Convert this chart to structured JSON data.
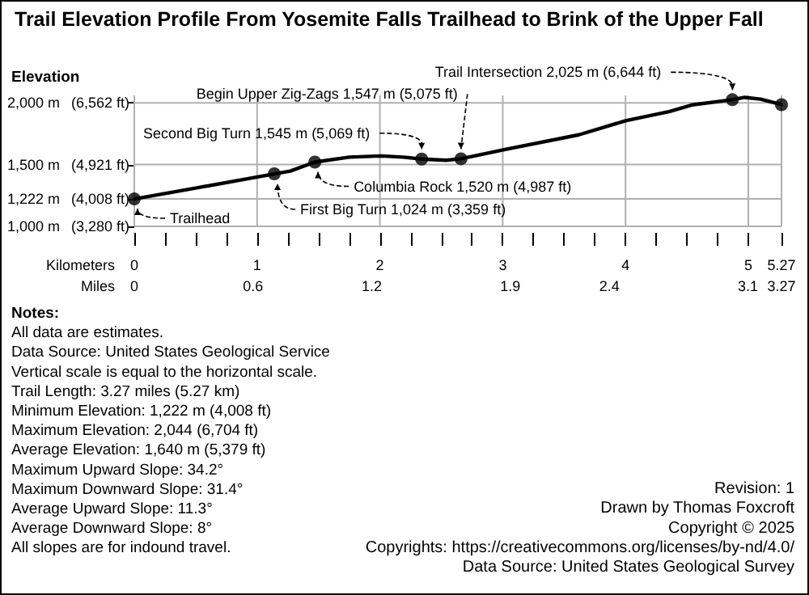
{
  "chart_data": {
    "type": "line",
    "title": "Trail Elevation Profile From Yosemite Falls Trailhead to Brink of the Upper Fall",
    "xlabel": "Kilometers",
    "x2label": "Miles",
    "ylabel": "Elevation",
    "xlim": [
      0,
      5.27
    ],
    "xticks": [
      0,
      {
        "value": 0.25,
        "label": null
      },
      {
        "value": 0.5,
        "label": null
      },
      {
        "value": 0.75,
        "label": null
      },
      1,
      {
        "value": 1.25,
        "label": null
      },
      {
        "value": 1.5,
        "label": null
      },
      {
        "value": 1.75,
        "label": null
      },
      2,
      {
        "value": 2.25,
        "label": null
      },
      {
        "value": 2.5,
        "label": null
      },
      {
        "value": 2.75,
        "label": null
      },
      3,
      {
        "value": 3.25,
        "label": null
      },
      {
        "value": 3.5,
        "label": null
      },
      {
        "value": 3.75,
        "label": null
      },
      4,
      {
        "value": 4.25,
        "label": null
      },
      {
        "value": 4.5,
        "label": null
      },
      {
        "value": 4.75,
        "label": null
      },
      5,
      5.27
    ],
    "x2lim": [
      0,
      3.27
    ],
    "x2ticks": [
      0,
      0.6,
      1.2,
      1.9,
      2.4,
      3.1,
      3.27
    ],
    "ylim": [
      1000,
      2060
    ],
    "yticks": [
      {
        "value": 1000,
        "label": "1,000 m"
      },
      {
        "value": 1222,
        "label": "1,222 m"
      },
      {
        "value": 1500,
        "label": "1,500 m"
      },
      {
        "value": 2000,
        "label": "2,000 m"
      }
    ],
    "y2lim": [
      3280,
      6758
    ],
    "y2ticks": [
      {
        "value": 3280,
        "label": "(3,280 ft)"
      },
      {
        "value": 4008,
        "label": "(4,008 ft)"
      },
      {
        "value": 4921,
        "label": "(4,921 ft)"
      },
      {
        "value": 6562,
        "label": "(6,562 ft)"
      }
    ],
    "grid": true,
    "series": [
      {
        "color": "#000000",
        "marker": "none",
        "line_style": "solid",
        "x": [
          0,
          0.5,
          1.14,
          1.27,
          1.47,
          1.75,
          2.01,
          2.19,
          2.34,
          2.54,
          2.66,
          3.02,
          3.62,
          4.0,
          4.36,
          4.54,
          4.87,
          4.97,
          5.1,
          5.27
        ],
        "values": [
          1222,
          1310,
          1425,
          1447,
          1520,
          1560,
          1570,
          1560,
          1545,
          1535,
          1547,
          1622,
          1741,
          1855,
          1930,
          1983,
          2025,
          2044,
          2030,
          1985
        ]
      },
      {
        "type": "scatter",
        "color": "#000000",
        "marker": "circle",
        "x": [
          0,
          1.14,
          1.47,
          2.34,
          2.66,
          4.87,
          5.27
        ],
        "values": [
          1222,
          1425,
          1520,
          1545,
          1547,
          2025,
          1985
        ]
      }
    ],
    "annotations": [
      {
        "text": "Trailhead",
        "x": 0,
        "y": 1222
      },
      {
        "text": "First Big Turn 1,024 m (3,359 ft)",
        "x": 1.14,
        "y": 1425
      },
      {
        "text": "Columbia Rock 1,520 m (4,987 ft)",
        "x": 1.47,
        "y": 1520
      },
      {
        "text": "Second Big Turn 1,545 m (5,069 ft)",
        "x": 2.34,
        "y": 1545
      },
      {
        "text": "Begin Upper Zig-Zags 1,547 m (5,075 ft)",
        "x": 2.66,
        "y": 1547
      },
      {
        "text": "Trail Intersection 2,025 m (6,644 ft)",
        "x": 4.87,
        "y": 2025
      },
      "Notes:",
      "All data are estimates.",
      "Data Source: United States Geological Service",
      "Vertical scale is equal to the horizontal scale.",
      "Trail Length: 3.27 miles (5.27 km)",
      "Minimum Elevation: 1,222 m (4,008 ft)",
      "Maximum Elevation: 2,044 (6,704 ft)",
      "Average Elevation: 1,640 m (5,379 ft)",
      "Maximum Upward Slope: 34.2°",
      "Maximum Downward Slope: 31.4°",
      "Average Upward Slope: 11.3°",
      "Average Downward Slope: 8°",
      "All slopes are for indound travel.",
      "Revision: 1",
      "Drawn by Thomas Foxcroft",
      "Copyright © 2025",
      "Copyrights: https://creativecommons.org/licenses/by-nd/4.0/",
      "Data Source: United States Geological Survey"
    ]
  }
}
